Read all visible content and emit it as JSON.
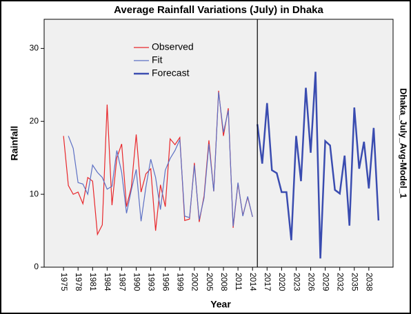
{
  "chart_data": {
    "type": "line",
    "title": "Average Rainfall Variations (July) in Dhaka",
    "x_label": "Year",
    "y_label": "Rainfall",
    "right_label": "Dhaka_July_Avg-Model_1",
    "xlim": [
      1971,
      2043
    ],
    "ylim": [
      0,
      34
    ],
    "xticks": [
      1975,
      1978,
      1981,
      1984,
      1987,
      1990,
      1993,
      1996,
      1999,
      2002,
      2005,
      2008,
      2011,
      2014,
      2017,
      2020,
      2023,
      2026,
      2029,
      2032,
      2035,
      2038
    ],
    "yticks": [
      0,
      10,
      20,
      30
    ],
    "legend": "upper-left",
    "series": [
      {
        "name": "Observed",
        "color": "#e8262a",
        "width": 1.2,
        "x": [
          1975,
          1976,
          1977,
          1978,
          1979,
          1980,
          1981,
          1982,
          1983,
          1984,
          1985,
          1986,
          1987,
          1988,
          1989,
          1990,
          1991,
          1992,
          1993,
          1994,
          1995,
          1996,
          1997,
          1998,
          1999,
          2000,
          2001,
          2002,
          2003,
          2004,
          2005,
          2006,
          2007,
          2008,
          2009,
          2010,
          2011,
          2012,
          2013,
          2014
        ],
        "values": [
          18,
          11.2,
          10,
          10.3,
          8.7,
          12.3,
          11.8,
          4.5,
          5.8,
          22.3,
          8.5,
          15,
          16.9,
          8.3,
          11,
          18.2,
          10.3,
          12.8,
          13.5,
          5,
          11.3,
          8.3,
          17.6,
          16.8,
          17.8,
          6.4,
          6.6,
          14.3,
          6.2,
          9.8,
          17.4,
          10.4,
          24.2,
          18,
          21.8,
          5.4,
          11.5,
          7.1,
          9.6,
          6.9
        ]
      },
      {
        "name": "Fit",
        "color": "#5b6fc4",
        "width": 1.2,
        "x": [
          1976,
          1977,
          1978,
          1979,
          1980,
          1981,
          1982,
          1983,
          1984,
          1985,
          1986,
          1987,
          1988,
          1989,
          1990,
          1991,
          1992,
          1993,
          1994,
          1995,
          1996,
          1997,
          1998,
          1999,
          2000,
          2001,
          2002,
          2003,
          2004,
          2005,
          2006,
          2007,
          2008,
          2009,
          2010,
          2011,
          2012,
          2013,
          2014
        ],
        "values": [
          18,
          16.3,
          11.6,
          11.4,
          10,
          14,
          13,
          12.3,
          10.7,
          11.1,
          16,
          13,
          7.4,
          10.6,
          13.4,
          6.3,
          11,
          14.8,
          12.3,
          7.9,
          13.3,
          14.9,
          16,
          17.5,
          7,
          6.8,
          14,
          6.5,
          9.5,
          16.9,
          10.4,
          24,
          18.5,
          21.5,
          5.6,
          11.6,
          7,
          9.7,
          6.9
        ]
      },
      {
        "name": "Forecast",
        "color": "#3a4cb0",
        "width": 2.5,
        "x": [
          2015,
          2016,
          2017,
          2018,
          2019,
          2020,
          2021,
          2022,
          2023,
          2024,
          2025,
          2026,
          2027,
          2028,
          2029,
          2030,
          2031,
          2032,
          2033,
          2034,
          2035,
          2036,
          2037,
          2038,
          2039,
          2040
        ],
        "values": [
          19.6,
          14.2,
          22.5,
          13.3,
          12.9,
          10.3,
          10.3,
          3.7,
          18,
          11.8,
          24.6,
          15.7,
          26.8,
          1.2,
          17.3,
          16.7,
          10.6,
          10.1,
          15.3,
          5.7,
          21.9,
          13.5,
          17.2,
          10.8,
          19.1,
          6.4
        ]
      }
    ]
  }
}
